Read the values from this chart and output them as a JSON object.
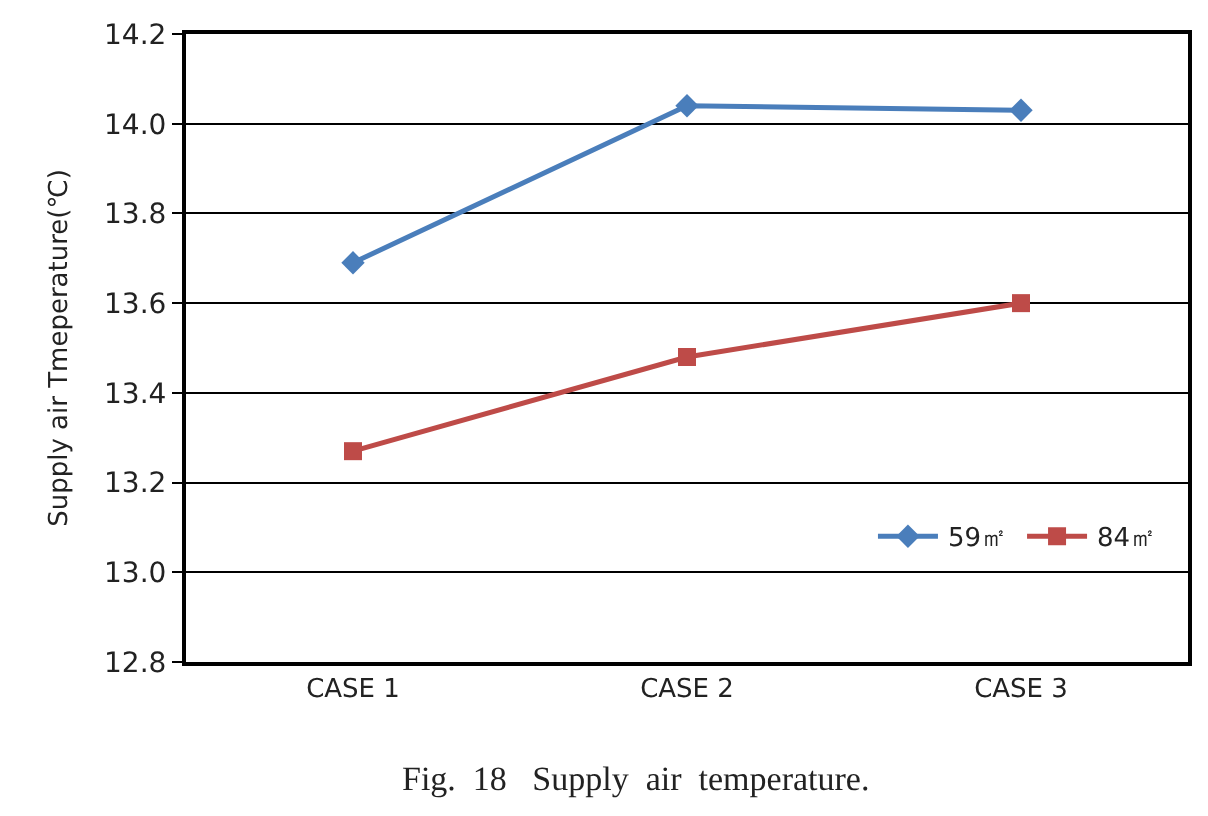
{
  "chart_data": {
    "type": "line",
    "ylabel": "Supply air Tmeperature(℃)",
    "categories": [
      "CASE 1",
      "CASE 2",
      "CASE 3"
    ],
    "series": [
      {
        "name": "59㎡",
        "color": "#4a7ebb",
        "values": [
          13.69,
          14.04,
          14.03
        ],
        "marker": "diamond"
      },
      {
        "name": "84㎡",
        "color": "#be4b48",
        "values": [
          13.27,
          13.48,
          13.6
        ],
        "marker": "square"
      }
    ],
    "ylim": [
      12.8,
      14.2
    ],
    "yticks": [
      12.8,
      {
        "value": 13,
        "label": "13.0"
      },
      13.2,
      13.4,
      13.6,
      13.8,
      {
        "value": 14,
        "label": "14.0"
      },
      14.2
    ],
    "grid": "y",
    "legend": "bottom right",
    "line_style": "solid",
    "annotations": [
      "Fig.  18   Supply  air  temperature."
    ]
  }
}
